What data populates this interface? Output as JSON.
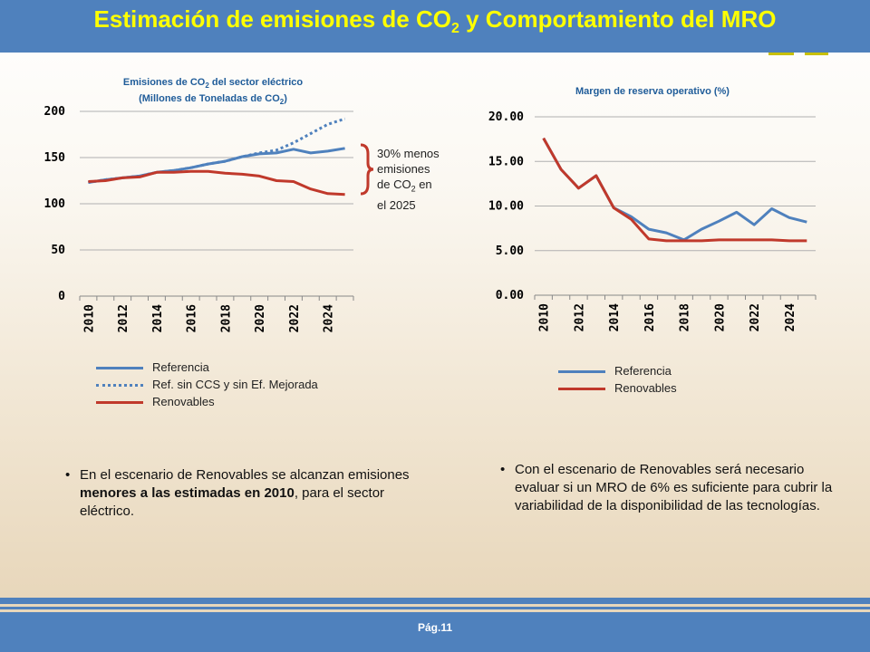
{
  "header": {
    "title_pre": "Estimación de emisiones de CO",
    "title_sub": "2",
    "title_post": " y Comportamiento del MRO"
  },
  "colors": {
    "header_bg": "#4f81bd",
    "title_text": "#ffff00",
    "referencia": "#4f81bd",
    "renovables": "#c0392b",
    "chart_title": "#1f5c99"
  },
  "note": {
    "line1": "30% menos",
    "line2": "emisiones",
    "line3_pre": "de  CO",
    "line3_sub": "2",
    "line3_post": "  en",
    "line4": "el 2025"
  },
  "chart_data": [
    {
      "type": "line",
      "title_line1_pre": "Emisiones de CO",
      "title_line1_sub": "2",
      "title_line1_post": " del sector eléctrico",
      "title_line2_pre": "(Millones de Toneladas de CO",
      "title_line2_sub": "2",
      "title_line2_post": ")",
      "x": [
        2010,
        2011,
        2012,
        2013,
        2014,
        2015,
        2016,
        2017,
        2018,
        2019,
        2020,
        2021,
        2022,
        2023,
        2024,
        2025
      ],
      "x_tick_labels": [
        "2010",
        "2012",
        "2014",
        "2016",
        "2018",
        "2020",
        "2022",
        "2024"
      ],
      "y_tick_labels": [
        "0",
        "50",
        "100",
        "150",
        "200"
      ],
      "ylim": [
        0,
        200
      ],
      "grid": true,
      "legend_position": "bottom",
      "series": [
        {
          "name": "Referencia",
          "style": "solid",
          "color": "#4f81bd",
          "values": [
            123,
            126,
            128,
            130,
            134,
            136,
            139,
            143,
            146,
            151,
            154,
            155,
            159,
            155,
            157,
            160
          ]
        },
        {
          "name": "Ref. sin CCS y sin Ef. Mejorada",
          "style": "dotted",
          "color": "#4f81bd",
          "values": [
            123,
            126,
            128,
            130,
            134,
            136,
            139,
            143,
            146,
            151,
            155,
            158,
            166,
            176,
            186,
            192
          ]
        },
        {
          "name": "Renovables",
          "style": "solid",
          "color": "#c0392b",
          "values": [
            124,
            125,
            128,
            129,
            134,
            134,
            135,
            135,
            133,
            132,
            130,
            125,
            124,
            116,
            111,
            110
          ]
        }
      ]
    },
    {
      "type": "line",
      "title": "Margen de reserva operativo (%)",
      "x": [
        2010,
        2011,
        2012,
        2013,
        2014,
        2015,
        2016,
        2017,
        2018,
        2019,
        2020,
        2021,
        2022,
        2023,
        2024,
        2025
      ],
      "x_tick_labels": [
        "2010",
        "2012",
        "2014",
        "2016",
        "2018",
        "2020",
        "2022",
        "2024"
      ],
      "y_tick_labels": [
        "0.00",
        "5.00",
        "10.00",
        "15.00",
        "20.00"
      ],
      "ylim": [
        0,
        20
      ],
      "grid": true,
      "legend_position": "bottom",
      "series": [
        {
          "name": "Referencia",
          "style": "solid",
          "color": "#4f81bd",
          "values": [
            17.6,
            14.1,
            12.0,
            13.4,
            9.8,
            8.8,
            7.4,
            7.0,
            6.2,
            7.4,
            8.3,
            9.3,
            7.9,
            9.7,
            8.7,
            8.2
          ]
        },
        {
          "name": "Renovables",
          "style": "solid",
          "color": "#c0392b",
          "values": [
            17.6,
            14.1,
            12.0,
            13.4,
            9.8,
            8.5,
            6.3,
            6.1,
            6.1,
            6.1,
            6.2,
            6.2,
            6.2,
            6.2,
            6.1,
            6.1
          ]
        }
      ]
    }
  ],
  "bullets": {
    "left_pre": "En el escenario de Renovables se alcanzan emisiones ",
    "left_bold": "menores a las estimadas en 2010",
    "left_post": ", para el sector eléctrico.",
    "right": "Con el escenario de Renovables será necesario evaluar si un MRO de 6% es suficiente para cubrir la variabilidad de la disponibilidad de las tecnologías."
  },
  "footer": {
    "page": "Pág.11"
  }
}
